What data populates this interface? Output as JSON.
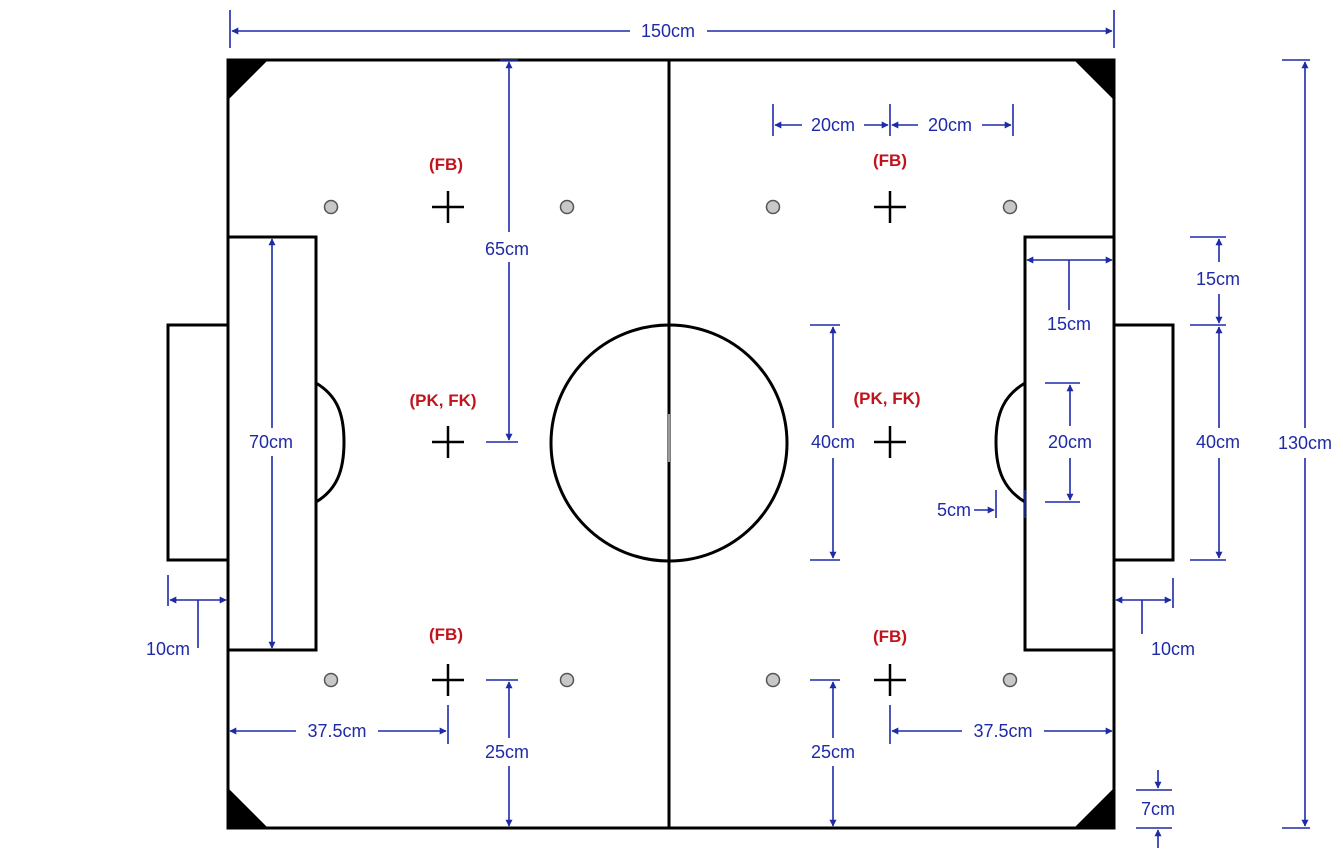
{
  "colors": {
    "field_line": "#000000",
    "dimension": "#1f2aa8",
    "label_red": "#c0141c",
    "spot_fill": "#c8c8c8",
    "spot_stroke": "#555555"
  },
  "dimensions": {
    "field_width": "150cm",
    "field_height": "130cm",
    "spot_offset_left": "20cm",
    "spot_offset_right": "20cm",
    "top_to_center_spot": "65cm",
    "penalty_area_height": "70cm",
    "goal_area_inner_depth": "15cm",
    "goal_area_vertical_gap": "15cm",
    "center_circle_diameter": "40cm",
    "goal_width": "40cm",
    "penalty_arc_height": "20cm",
    "arc_offset": "5cm",
    "goal_depth_left": "10cm",
    "goal_depth_right": "10cm",
    "bottom_spot_to_line_left": "25cm",
    "bottom_spot_to_line_right": "25cm",
    "spot_from_goal_line_left": "37.5cm",
    "spot_from_goal_line_right": "37.5cm",
    "corner_size": "7cm"
  },
  "marks": {
    "fb_top_left": "(FB)",
    "fb_top_right": "(FB)",
    "pk_left": "(PK, FK)",
    "pk_right": "(PK, FK)",
    "fb_bottom_left": "(FB)",
    "fb_bottom_right": "(FB)"
  }
}
